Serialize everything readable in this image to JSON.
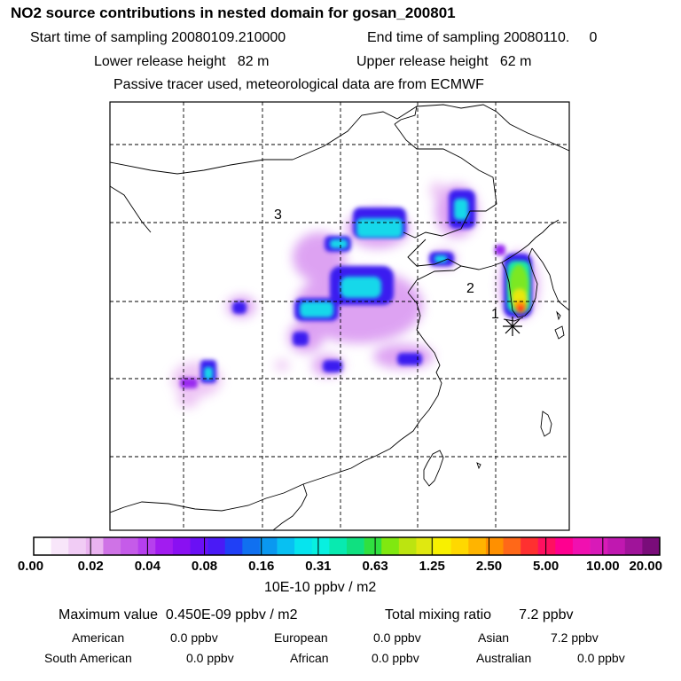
{
  "header": {
    "title": "NO2 source contributions in nested domain for gosan_200801",
    "start_time": "Start time of sampling 20080109.210000",
    "end_time": "End time of sampling 20080110.     0",
    "lower_release": "Lower release height   82 m",
    "upper_release": "Upper release height   62 m",
    "tracer_note": "Passive tracer used, meteorological data are from ECMWF"
  },
  "map": {
    "markers": [
      {
        "label": "1"
      },
      {
        "label": "2"
      },
      {
        "label": "3"
      }
    ],
    "receptor_symbol": "asterisk-icon"
  },
  "colorbar": {
    "tick_labels": [
      "0.00",
      "0.02",
      "0.04",
      "0.08",
      "0.16",
      "0.31",
      "0.63",
      "1.25",
      "2.50",
      "5.00",
      "10.00",
      "20.00"
    ],
    "colors": [
      "#ffffff",
      "#f8e6fa",
      "#f1ccf5",
      "#eab3f0",
      "#cf73e6",
      "#c55be9",
      "#b63fee",
      "#a21cf0",
      "#8a10f2",
      "#6a10f5",
      "#4a1af6",
      "#2040f6",
      "#1070f0",
      "#0a98f0",
      "#08c0f2",
      "#06e4ee",
      "#08f0e0",
      "#08eab0",
      "#10e080",
      "#30e040",
      "#80e810",
      "#bce410",
      "#e0e810",
      "#f8f000",
      "#ffd800",
      "#ffb400",
      "#ff9000",
      "#ff6818",
      "#ff3030",
      "#ff1060",
      "#ff0090",
      "#f010b0",
      "#d81ab8",
      "#c018b0",
      "#a0149a",
      "#7a0c7a"
    ],
    "units": "10E-10 ppbv / m2"
  },
  "summary": {
    "max_value": "Maximum value  0.450E-09 ppbv / m2",
    "total_mixing": "Total mixing ratio       7.2 ppbv",
    "regions": [
      {
        "name": "American",
        "value": "0.0 ppbv"
      },
      {
        "name": "European",
        "value": "0.0 ppbv"
      },
      {
        "name": "Asian",
        "value": "7.2 ppbv"
      },
      {
        "name": "South American",
        "value": "0.0 ppbv"
      },
      {
        "name": "African",
        "value": "0.0 ppbv"
      },
      {
        "name": "Australian",
        "value": "0.0 ppbv"
      }
    ]
  }
}
